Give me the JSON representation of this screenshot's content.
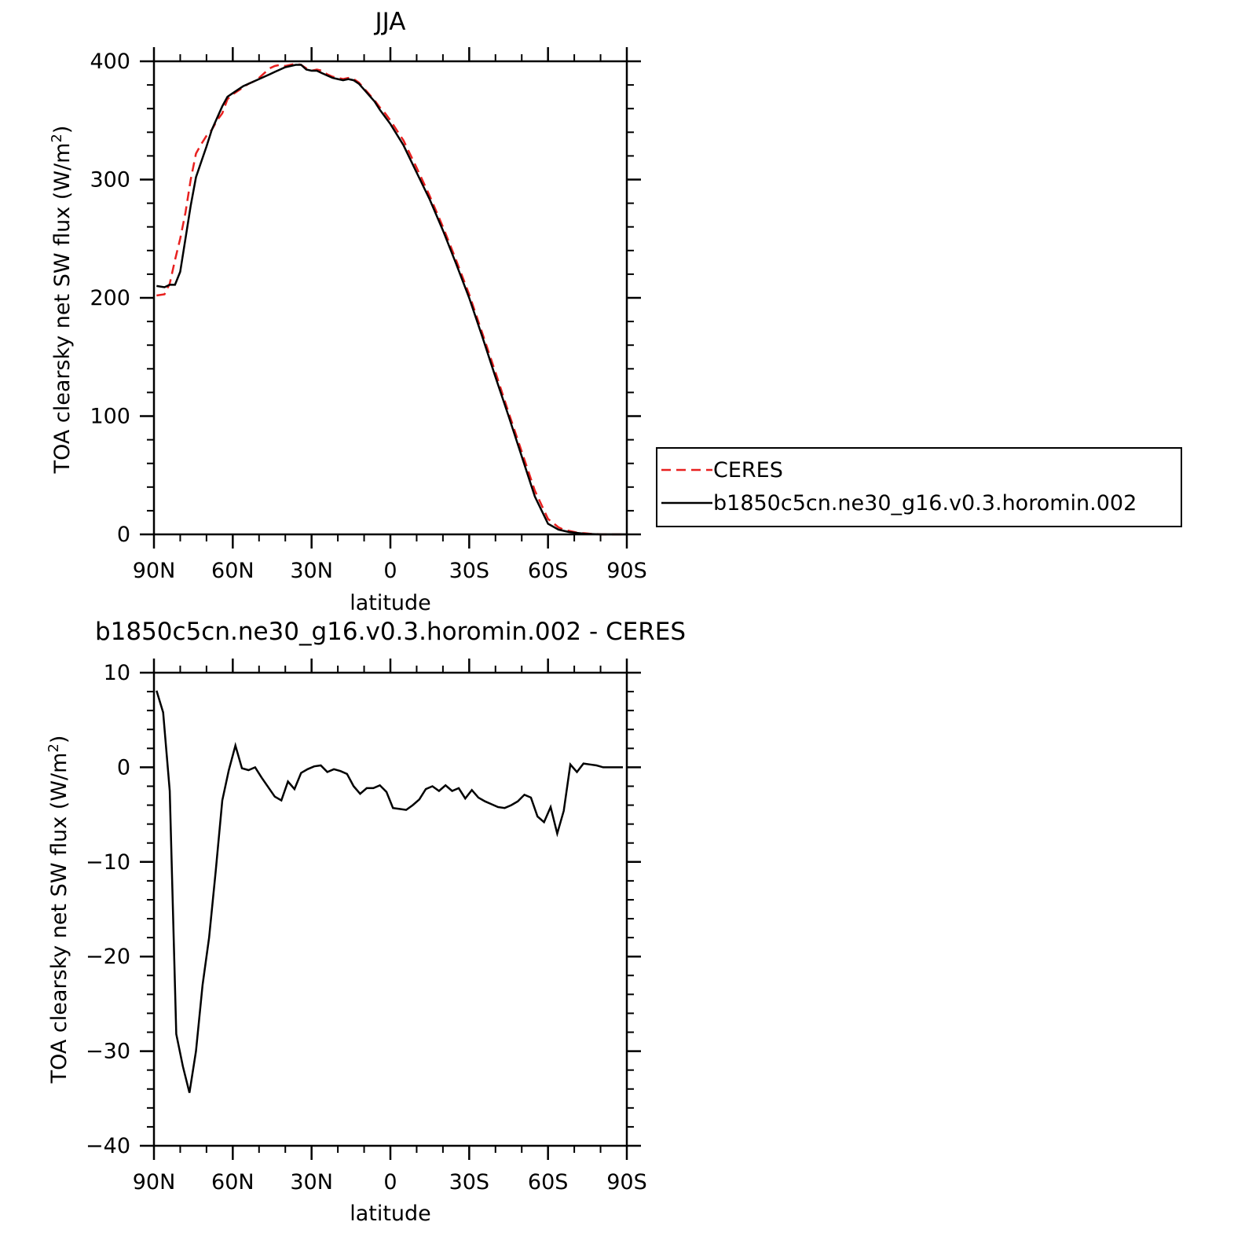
{
  "chart_data": [
    {
      "type": "line",
      "title": "JJA",
      "xlabel": "latitude",
      "ylabel": "TOA clearsky net SW flux (W/m",
      "ylabel_superscript": "2",
      "ylabel_suffix": ")",
      "xlim": [
        90,
        -90
      ],
      "ylim": [
        0,
        400
      ],
      "x_ticks": [
        90,
        60,
        30,
        0,
        -30,
        -60,
        -90
      ],
      "x_tick_labels": [
        "90N",
        "60N",
        "30N",
        "0",
        "30S",
        "60S",
        "90S"
      ],
      "y_ticks": [
        0,
        100,
        200,
        300,
        400
      ],
      "y_tick_labels": [
        "0",
        "100",
        "200",
        "300",
        "400"
      ],
      "grid": false,
      "legend_position": "right",
      "series": [
        {
          "name": "CERES",
          "color": "#e8201f",
          "style": "dashed",
          "x": [
            89,
            86,
            84,
            82,
            80,
            78,
            76,
            74,
            72,
            70,
            68,
            66,
            64,
            62,
            60,
            58,
            56,
            54,
            52,
            50,
            48,
            46,
            44,
            42,
            40,
            38,
            36,
            34,
            32,
            30,
            28,
            26,
            24,
            22,
            20,
            18,
            16,
            14,
            12,
            10,
            8,
            6,
            4,
            2,
            0,
            -5,
            -10,
            -15,
            -20,
            -25,
            -30,
            -35,
            -40,
            -45,
            -50,
            -55,
            -60,
            -64,
            -66,
            -68,
            -70,
            -72,
            -74,
            -76,
            -78,
            -80,
            -84,
            -88,
            -90
          ],
          "y": [
            202,
            203,
            212,
            232,
            250,
            272,
            300,
            322,
            330,
            337,
            342,
            350,
            356,
            368,
            372,
            375,
            378,
            381,
            383,
            386,
            390,
            394,
            396,
            397,
            396,
            397,
            398,
            397,
            394,
            392,
            393,
            392,
            389,
            387,
            386,
            385,
            386,
            385,
            382,
            377,
            372,
            367,
            361,
            356,
            350,
            333,
            310,
            286,
            260,
            232,
            203,
            170,
            137,
            103,
            70,
            37,
            13,
            6,
            4,
            3,
            2,
            1,
            1,
            0.5,
            0.3,
            0,
            0,
            0,
            0
          ]
        },
        {
          "name": "b1850c5cn.ne30_g16.v0.3.horomin.002",
          "color": "#000000",
          "style": "solid",
          "x": [
            89,
            86,
            84,
            82,
            80,
            78,
            76,
            74,
            72,
            70,
            68,
            66,
            64,
            62,
            60,
            58,
            56,
            54,
            52,
            50,
            48,
            46,
            44,
            42,
            40,
            38,
            36,
            34,
            32,
            30,
            28,
            26,
            24,
            22,
            20,
            18,
            16,
            14,
            12,
            10,
            8,
            6,
            4,
            2,
            0,
            -5,
            -10,
            -15,
            -20,
            -25,
            -30,
            -35,
            -40,
            -45,
            -50,
            -55,
            -60,
            -64,
            -66,
            -68,
            -70,
            -72,
            -74,
            -76,
            -78,
            -80,
            -84,
            -88,
            -90
          ],
          "y": [
            210,
            209,
            211,
            211,
            222,
            250,
            278,
            302,
            315,
            328,
            342,
            352,
            362,
            370,
            373,
            376,
            379,
            381,
            383,
            385,
            387,
            389,
            391,
            393,
            395,
            396,
            397,
            397,
            393,
            392,
            392,
            390,
            388,
            386,
            385,
            384,
            385,
            384,
            381,
            376,
            371,
            366,
            359,
            353,
            347,
            329,
            306,
            283,
            257,
            229,
            200,
            167,
            133,
            100,
            66,
            32,
            9,
            4,
            3,
            2,
            1.5,
            1,
            0.5,
            0.3,
            0.2,
            0,
            0,
            0,
            0
          ]
        }
      ]
    },
    {
      "type": "line",
      "title": "b1850c5cn.ne30_g16.v0.3.horomin.002 - CERES",
      "xlabel": "latitude",
      "ylabel": "TOA clearsky net SW flux (W/m",
      "ylabel_superscript": "2",
      "ylabel_suffix": ")",
      "xlim": [
        90,
        -90
      ],
      "ylim": [
        -40,
        10
      ],
      "x_ticks": [
        90,
        60,
        30,
        0,
        -30,
        -60,
        -90
      ],
      "x_tick_labels": [
        "90N",
        "60N",
        "30N",
        "0",
        "30S",
        "60S",
        "90S"
      ],
      "y_ticks": [
        -40,
        -30,
        -20,
        -10,
        0,
        10
      ],
      "y_tick_labels": [
        "−40",
        "−30",
        "−20",
        "−10",
        "0",
        "10"
      ],
      "grid": false,
      "series": [
        {
          "color": "#000000",
          "style": "solid",
          "x": [
            89,
            86.5,
            84,
            81.5,
            79,
            76.5,
            74,
            71.5,
            69,
            66.5,
            64,
            61.5,
            59,
            56.5,
            54,
            51.5,
            49,
            46.5,
            44,
            41.5,
            39,
            36.5,
            34,
            31.5,
            29,
            26.5,
            24,
            21.5,
            19,
            16.5,
            14,
            11.5,
            9,
            6.5,
            4,
            1.5,
            -1,
            -3.5,
            -6,
            -8.5,
            -11,
            -13.5,
            -16,
            -18.5,
            -21,
            -23.5,
            -26,
            -28.5,
            -31,
            -33.5,
            -36,
            -38.5,
            -41,
            -43.5,
            -46,
            -48.5,
            -51,
            -53.5,
            -56,
            -58.5,
            -61,
            -63.5,
            -66,
            -68.5,
            -71,
            -73.5,
            -76,
            -78.5,
            -81,
            -83.5,
            -86,
            -88.5
          ],
          "y": [
            8.1,
            5.8,
            -2.5,
            -28.2,
            -31.6,
            -34.4,
            -30,
            -23,
            -18,
            -11,
            -3.5,
            -0.3,
            2.3,
            -0.1,
            -0.3,
            0.0,
            -1.1,
            -2.1,
            -3.1,
            -3.5,
            -1.5,
            -2.3,
            -0.6,
            -0.2,
            0.1,
            0.2,
            -0.5,
            -0.2,
            -0.4,
            -0.7,
            -2.0,
            -2.8,
            -2.2,
            -2.2,
            -1.9,
            -2.6,
            -4.3,
            -4.4,
            -4.5,
            -4.0,
            -3.4,
            -2.3,
            -2.0,
            -2.5,
            -1.9,
            -2.5,
            -2.2,
            -3.3,
            -2.4,
            -3.2,
            -3.6,
            -3.9,
            -4.2,
            -4.3,
            -4.0,
            -3.6,
            -2.9,
            -3.2,
            -5.2,
            -5.8,
            -4.2,
            -7.0,
            -4.6,
            0.3,
            -0.5,
            0.4,
            0.3,
            0.2,
            0.0,
            0.0,
            0.0,
            0.0
          ]
        }
      ]
    }
  ]
}
